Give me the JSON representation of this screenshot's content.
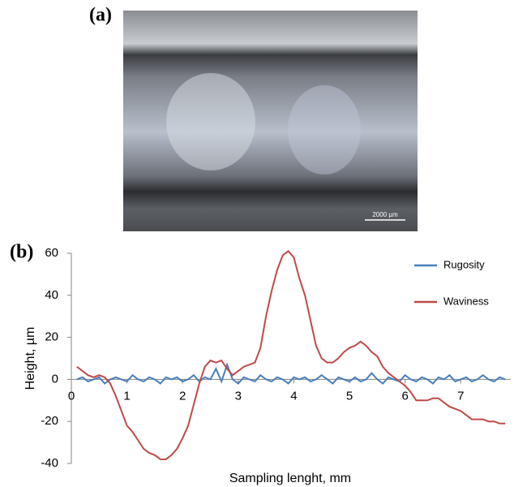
{
  "panels": {
    "a": "(a)",
    "b": "(b)"
  },
  "image": {
    "scale_bar": "2000 µm"
  },
  "chart_data": {
    "type": "line",
    "xlabel": "Sampling lenght, mm",
    "ylabel": "Height, µm",
    "x": [
      0.1,
      0.2,
      0.3,
      0.4,
      0.5,
      0.6,
      0.7,
      0.8,
      0.9,
      1.0,
      1.1,
      1.2,
      1.3,
      1.4,
      1.5,
      1.6,
      1.7,
      1.8,
      1.9,
      2.0,
      2.1,
      2.2,
      2.3,
      2.4,
      2.5,
      2.6,
      2.7,
      2.8,
      2.9,
      3.0,
      3.1,
      3.2,
      3.3,
      3.4,
      3.5,
      3.6,
      3.7,
      3.8,
      3.9,
      4.0,
      4.1,
      4.2,
      4.3,
      4.4,
      4.5,
      4.6,
      4.7,
      4.8,
      4.9,
      5.0,
      5.1,
      5.2,
      5.3,
      5.4,
      5.5,
      5.6,
      5.7,
      5.8,
      5.9,
      6.0,
      6.1,
      6.2,
      6.3,
      6.4,
      6.5,
      6.6,
      6.7,
      6.8,
      6.9,
      7.0,
      7.1,
      7.2,
      7.3,
      7.4,
      7.5,
      7.6,
      7.7,
      7.8
    ],
    "series": [
      {
        "name": "Rugosity",
        "color": "#4a7ebb",
        "values": [
          0,
          1,
          -1,
          0,
          1,
          -2,
          0,
          1,
          0,
          -1,
          2,
          0,
          -1,
          1,
          0,
          -2,
          1,
          0,
          1,
          -1,
          0,
          2,
          -1,
          1,
          0,
          5,
          -1,
          7,
          0,
          -2,
          1,
          0,
          -1,
          2,
          0,
          -1,
          1,
          0,
          -2,
          1,
          0,
          1,
          -1,
          0,
          2,
          0,
          -2,
          1,
          0,
          -1,
          1,
          -1,
          0,
          3,
          0,
          -2,
          1,
          0,
          -1,
          2,
          0,
          -1,
          1,
          0,
          -2,
          1,
          0,
          2,
          -1,
          0,
          1,
          -1,
          0,
          2,
          0,
          -1,
          1,
          0
        ]
      },
      {
        "name": "Waviness",
        "color": "#be4b48",
        "values": [
          6,
          4,
          2,
          1,
          2,
          1,
          -2,
          -8,
          -15,
          -22,
          -25,
          -29,
          -33,
          -35,
          -36,
          -38,
          -38,
          -36,
          -33,
          -28,
          -22,
          -12,
          -2,
          6,
          9,
          8,
          9,
          5,
          2,
          4,
          6,
          7,
          8,
          15,
          30,
          42,
          52,
          59,
          61,
          58,
          48,
          40,
          28,
          16,
          10,
          8,
          8,
          10,
          13,
          15,
          16,
          18,
          16,
          13,
          11,
          6,
          3,
          1,
          -1,
          -3,
          -6,
          -10,
          -10,
          -10,
          -9,
          -9,
          -11,
          -13,
          -14,
          -15,
          -17,
          -19,
          -19,
          -19,
          -20,
          -20,
          -21,
          -21
        ]
      }
    ],
    "xlim": [
      0,
      7.9
    ],
    "ylim": [
      -40,
      60
    ],
    "xticks": [
      0,
      1,
      2,
      3,
      4,
      5,
      6,
      7
    ],
    "yticks": [
      -40,
      -20,
      0,
      20,
      40,
      60
    ],
    "legend": "upper right"
  }
}
